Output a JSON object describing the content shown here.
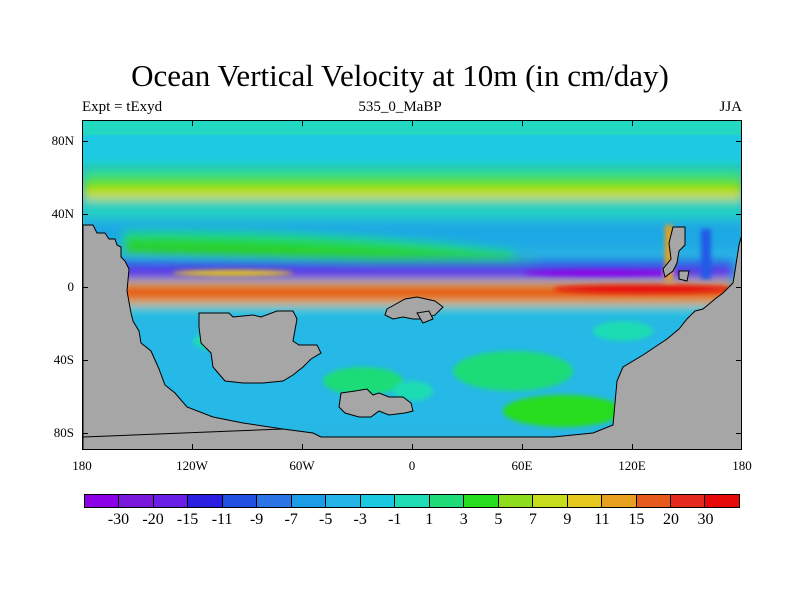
{
  "header": {
    "title": "Ocean Vertical Velocity at 10m (in cm/day)",
    "left": "Expt = tExyd",
    "center": "535_0_MaBP",
    "right": "JJA"
  },
  "map": {
    "lat_labels": [
      "80N",
      "40N",
      "0",
      "40S",
      "80S"
    ],
    "lon_labels": [
      "180",
      "120W",
      "60W",
      "0",
      "60E",
      "120E",
      "180"
    ],
    "land_color": "#a6a6a6"
  },
  "colorbar": {
    "labels": [
      "-30",
      "-20",
      "-15",
      "-11",
      "-9",
      "-7",
      "-5",
      "-3",
      "-1",
      "1",
      "3",
      "5",
      "7",
      "9",
      "11",
      "15",
      "20",
      "30"
    ],
    "colors": [
      "#8c00e6",
      "#7a19dc",
      "#6a1fe6",
      "#2a1ee0",
      "#2050e0",
      "#2a76e6",
      "#1a9ce6",
      "#25b4e6",
      "#1ac8e0",
      "#1fdcb4",
      "#1fdc78",
      "#28dc1e",
      "#8edc1e",
      "#c8dc1e",
      "#e6c81e",
      "#e6a01e",
      "#e65a1e",
      "#e62a1e",
      "#e60a0a"
    ]
  }
}
